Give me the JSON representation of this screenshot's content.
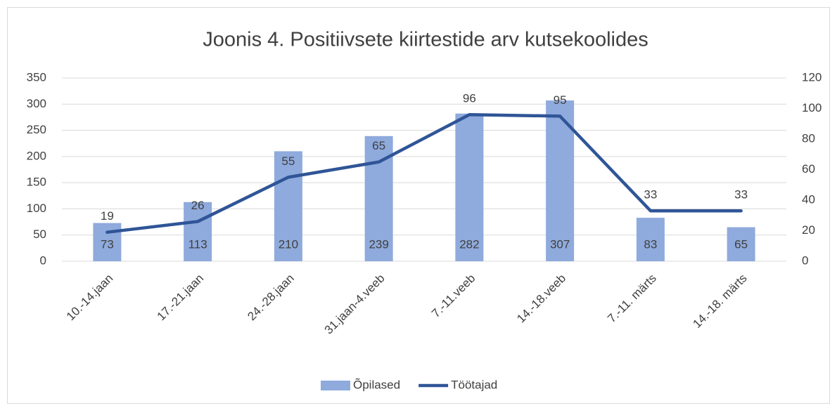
{
  "chart_data": {
    "type": "bar",
    "title": "Joonis 4. Positiivsete kiirtestide arv kutsekoolides",
    "categories": [
      "10.-14.jaan",
      "17.-21.jaan",
      "24.-28.jaan",
      "31.jaan-4.veeb",
      "7.-11.veeb",
      "14.-18.veeb",
      "7.-11. märts",
      "14.-18. märts"
    ],
    "series": [
      {
        "name": "Õpilased",
        "type": "bar",
        "color": "#8faadc",
        "values": [
          73,
          113,
          210,
          239,
          282,
          307,
          83,
          65
        ]
      },
      {
        "name": "Töötajad",
        "type": "line",
        "axis": "y2",
        "color": "#2f5597",
        "values": [
          19,
          26,
          55,
          65,
          96,
          95,
          33,
          33
        ]
      }
    ],
    "ylim": [
      0,
      350
    ],
    "yticks": [
      0,
      50,
      100,
      150,
      200,
      250,
      300,
      350
    ],
    "y2lim": [
      0,
      120
    ],
    "y2ticks": [
      0,
      20,
      40,
      60,
      80,
      100,
      120
    ],
    "grid": true,
    "legend": "bottom"
  }
}
